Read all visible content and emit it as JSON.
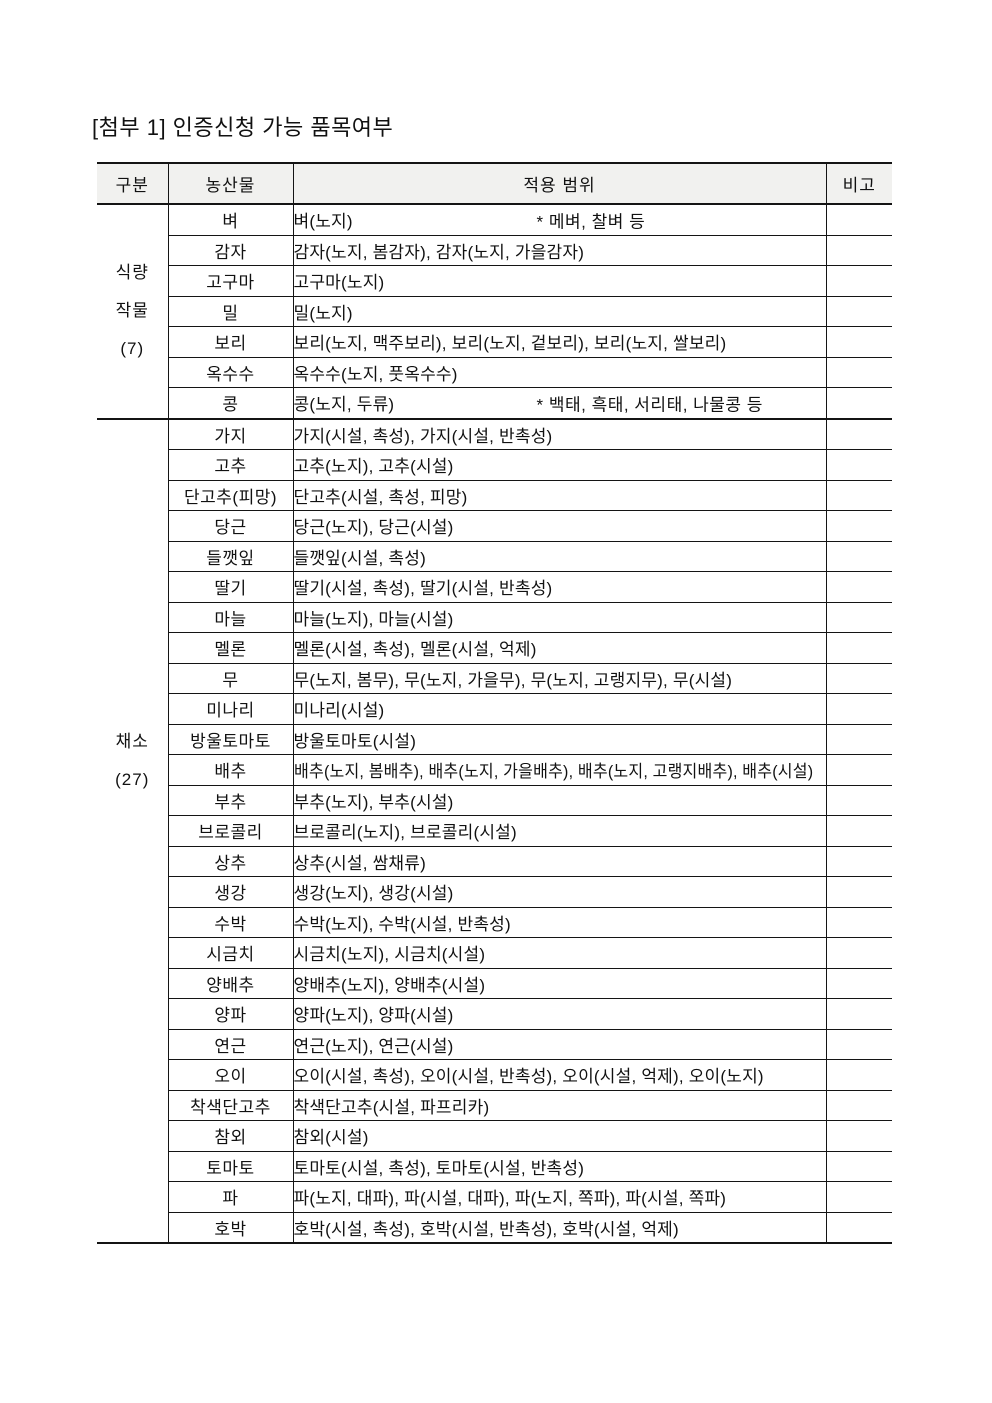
{
  "page": {
    "title": "[첨부 1] 인증신청 가능 품목여부"
  },
  "table": {
    "headers": [
      "구분",
      "농산물",
      "적용 범위",
      "비고"
    ],
    "groups": [
      {
        "label": "식량 작물 (7)",
        "label_lines": [
          "식량",
          "작물",
          "(7)"
        ],
        "rows": [
          {
            "item": "벼",
            "scope": "벼(노지)",
            "note": "* 메벼, 찰벼 등"
          },
          {
            "item": "감자",
            "scope": "감자(노지, 봄감자), 감자(노지, 가을감자)"
          },
          {
            "item": "고구마",
            "scope": "고구마(노지)"
          },
          {
            "item": "밀",
            "scope": "밀(노지)"
          },
          {
            "item": "보리",
            "scope": "보리(노지, 맥주보리), 보리(노지, 겉보리), 보리(노지, 쌀보리)"
          },
          {
            "item": "옥수수",
            "scope": "옥수수(노지, 풋옥수수)"
          },
          {
            "item": "콩",
            "scope": "콩(노지, 두류)",
            "note": "* 백태, 흑태, 서리태, 나물콩 등"
          }
        ]
      },
      {
        "label": "채소 (27)",
        "label_lines": [
          "채소",
          "(27)"
        ],
        "rows": [
          {
            "item": "가지",
            "scope": "가지(시설, 촉성), 가지(시설, 반촉성)"
          },
          {
            "item": "고추",
            "scope": "고추(노지), 고추(시설)"
          },
          {
            "item": "단고추(피망)",
            "scope": "단고추(시설, 촉성, 피망)"
          },
          {
            "item": "당근",
            "scope": "당근(노지), 당근(시설)"
          },
          {
            "item": "들깻잎",
            "scope": "들깻잎(시설, 촉성)"
          },
          {
            "item": "딸기",
            "scope": "딸기(시설, 촉성), 딸기(시설, 반촉성)"
          },
          {
            "item": "마늘",
            "scope": "마늘(노지), 마늘(시설)"
          },
          {
            "item": "멜론",
            "scope": "멜론(시설, 촉성), 멜론(시설, 억제)"
          },
          {
            "item": "무",
            "scope": "무(노지, 봄무), 무(노지, 가을무), 무(노지, 고랭지무), 무(시설)"
          },
          {
            "item": "미나리",
            "scope": "미나리(시설)"
          },
          {
            "item": "방울토마토",
            "scope": "방울토마토(시설)"
          },
          {
            "item": "배추",
            "scope": "배추(노지, 봄배추), 배추(노지, 가을배추), 배추(노지, 고랭지배추), 배추(시설)"
          },
          {
            "item": "부추",
            "scope": "부추(노지), 부추(시설)"
          },
          {
            "item": "브로콜리",
            "scope": "브로콜리(노지), 브로콜리(시설)"
          },
          {
            "item": "상추",
            "scope": "상추(시설, 쌈채류)"
          },
          {
            "item": "생강",
            "scope": "생강(노지), 생강(시설)"
          },
          {
            "item": "수박",
            "scope": "수박(노지), 수박(시설, 반촉성)"
          },
          {
            "item": "시금치",
            "scope": "시금치(노지), 시금치(시설)"
          },
          {
            "item": "양배추",
            "scope": "양배추(노지), 양배추(시설)"
          },
          {
            "item": "양파",
            "scope": "양파(노지), 양파(시설)"
          },
          {
            "item": "연근",
            "scope": "연근(노지), 연근(시설)"
          },
          {
            "item": "오이",
            "scope": "오이(시설, 촉성), 오이(시설, 반촉성), 오이(시설, 억제), 오이(노지)"
          },
          {
            "item": "착색단고추",
            "scope": "착색단고추(시설, 파프리카)"
          },
          {
            "item": "참외",
            "scope": "참외(시설)"
          },
          {
            "item": "토마토",
            "scope": "토마토(시설, 촉성), 토마토(시설, 반촉성)"
          },
          {
            "item": "파",
            "scope": "파(노지, 대파), 파(시설, 대파), 파(노지, 쪽파), 파(시설, 쪽파)"
          },
          {
            "item": "호박",
            "scope": "호박(시설, 촉성), 호박(시설, 반촉성), 호박(시설, 억제)"
          }
        ]
      }
    ]
  },
  "colors": {
    "header_bg": "#f1f1ef",
    "border": "#141414",
    "text": "#111111",
    "page_bg": "#ffffff"
  }
}
